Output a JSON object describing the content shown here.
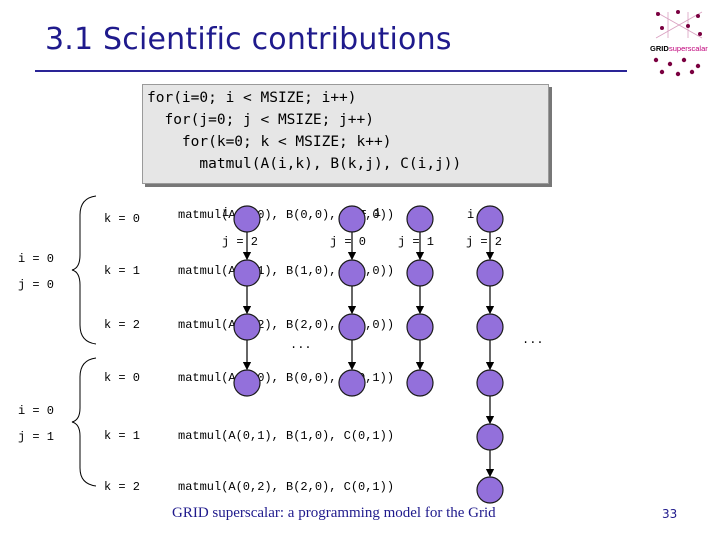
{
  "slide": {
    "title": "3.1 Scientific contributions",
    "page_number": "33",
    "footer": "GRID superscalar: a programming model for the Grid"
  },
  "logo": {
    "text_part1": "GRID",
    "text_part2": "superscalar",
    "colors": {
      "text": "#000000",
      "accent": "#c0007a",
      "dots": "#7a0040"
    }
  },
  "code": {
    "lines": [
      "for(i=0; i < MSIZE; i++)",
      "  for(j=0; j < MSIZE; j++)",
      "    for(k=0; k < MSIZE; k++)",
      "      matmul(A(i,k), B(k,j), C(i,j))"
    ]
  },
  "diagram": {
    "groups": [
      {
        "i_label": "i = 0",
        "j_label": "j = 0"
      },
      {
        "i_label": "i = 0",
        "j_label": "j = 1"
      }
    ],
    "rows": [
      {
        "k": "k = 0",
        "call": "matmul(A(0,0), B(0,0), C(0,0))"
      },
      {
        "k": "k = 1",
        "call": "matmul(A(0,1), B(1,0), C(0,0))"
      },
      {
        "k": "k = 2",
        "call": "matmul(A(0,2), B(2,0), C(0,0))"
      },
      {
        "k": "k = 0",
        "call": "matmul(A(0,0), B(0,0), C(0,1))"
      },
      {
        "k": "k = 1",
        "call": "matmul(A(0,1), B(1,0), C(0,1))"
      },
      {
        "k": "k = 2",
        "call": "matmul(A(0,2), B(2,0), C(0,1))"
      }
    ],
    "overlay_labels": {
      "i1": "i = 1",
      "i1b": "i = 1",
      "i1c": "i = 1",
      "j2": "j = 2",
      "j0": "j = 0",
      "j1": "j = 1",
      "j2b": "j = 2",
      "ellipsis1": "...",
      "ellipsis2": "..."
    },
    "node_color": "#9370db",
    "node_stroke": "#1a1a1a"
  }
}
